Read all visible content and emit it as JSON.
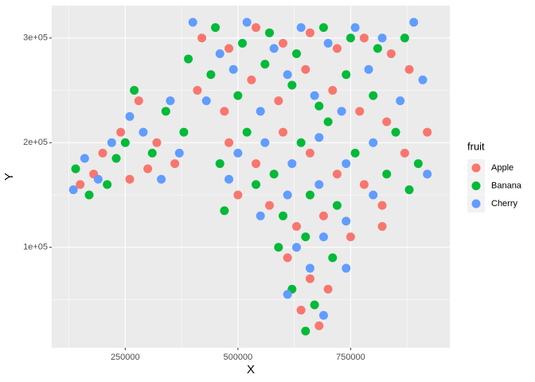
{
  "chart_data": {
    "type": "scatter",
    "x_label": "X",
    "y_label": "Y",
    "legend_title": "fruit",
    "legend_position": "right",
    "grid": true,
    "xlim": [
      87000,
      970000
    ],
    "ylim": [
      4000,
      331000
    ],
    "xticks": [
      250000,
      500000,
      750000
    ],
    "yticks": [
      {
        "value": 100000,
        "label": "1e+05"
      },
      {
        "value": 200000,
        "label": "2e+05"
      },
      {
        "value": 300000,
        "label": "3e+05"
      }
    ],
    "xminorticks": [
      125000,
      375000,
      625000,
      875000
    ],
    "yminorticks": [
      50000,
      150000,
      250000
    ],
    "series": [
      {
        "name": "Apple",
        "color": "#F8766D",
        "x": [
          150000,
          200000,
          180000,
          240000,
          280000,
          320000,
          360000,
          300000,
          260000,
          420000,
          480000,
          540000,
          600000,
          660000,
          720000,
          780000,
          840000,
          880000,
          410000,
          470000,
          530000,
          590000,
          650000,
          710000,
          770000,
          830000,
          870000,
          480000,
          540000,
          600000,
          660000,
          720000,
          780000,
          820000,
          500000,
          570000,
          630000,
          690000,
          750000,
          610000,
          660000,
          700000,
          640000,
          680000,
          920000,
          820000
        ],
        "values": [
          160000,
          190000,
          170000,
          210000,
          240000,
          200000,
          180000,
          175000,
          165000,
          300000,
          290000,
          310000,
          295000,
          305000,
          290000,
          300000,
          285000,
          270000,
          250000,
          230000,
          260000,
          240000,
          270000,
          250000,
          230000,
          220000,
          190000,
          200000,
          180000,
          210000,
          190000,
          170000,
          160000,
          140000,
          150000,
          140000,
          120000,
          130000,
          110000,
          90000,
          70000,
          60000,
          40000,
          25000,
          210000,
          120000
        ]
      },
      {
        "name": "Banana",
        "color": "#00BA38",
        "x": [
          140000,
          170000,
          210000,
          230000,
          270000,
          250000,
          340000,
          380000,
          310000,
          390000,
          450000,
          510000,
          570000,
          630000,
          690000,
          750000,
          810000,
          870000,
          440000,
          500000,
          560000,
          620000,
          680000,
          740000,
          800000,
          850000,
          460000,
          520000,
          580000,
          640000,
          700000,
          760000,
          830000,
          470000,
          540000,
          600000,
          660000,
          720000,
          590000,
          650000,
          710000,
          620000,
          670000,
          650000,
          900000,
          880000
        ],
        "values": [
          175000,
          150000,
          160000,
          185000,
          250000,
          200000,
          230000,
          210000,
          190000,
          280000,
          310000,
          295000,
          305000,
          285000,
          310000,
          300000,
          290000,
          300000,
          265000,
          245000,
          275000,
          255000,
          235000,
          265000,
          245000,
          210000,
          180000,
          210000,
          170000,
          200000,
          220000,
          190000,
          170000,
          135000,
          160000,
          130000,
          150000,
          140000,
          100000,
          110000,
          90000,
          60000,
          45000,
          20000,
          180000,
          155000
        ]
      },
      {
        "name": "Cherry",
        "color": "#619CFF",
        "x": [
          135000,
          160000,
          190000,
          220000,
          260000,
          290000,
          330000,
          370000,
          350000,
          400000,
          460000,
          520000,
          580000,
          640000,
          700000,
          760000,
          820000,
          890000,
          430000,
          490000,
          550000,
          610000,
          670000,
          730000,
          790000,
          860000,
          910000,
          500000,
          560000,
          620000,
          680000,
          740000,
          800000,
          480000,
          550000,
          610000,
          680000,
          740000,
          800000,
          630000,
          690000,
          740000,
          660000,
          690000,
          920000,
          610000
        ],
        "values": [
          155000,
          185000,
          165000,
          200000,
          225000,
          210000,
          165000,
          190000,
          240000,
          315000,
          285000,
          315000,
          290000,
          310000,
          295000,
          310000,
          300000,
          315000,
          240000,
          270000,
          230000,
          265000,
          245000,
          230000,
          270000,
          240000,
          260000,
          190000,
          200000,
          180000,
          205000,
          180000,
          200000,
          165000,
          130000,
          150000,
          160000,
          125000,
          150000,
          100000,
          110000,
          80000,
          80000,
          35000,
          170000,
          55000
        ]
      }
    ]
  }
}
